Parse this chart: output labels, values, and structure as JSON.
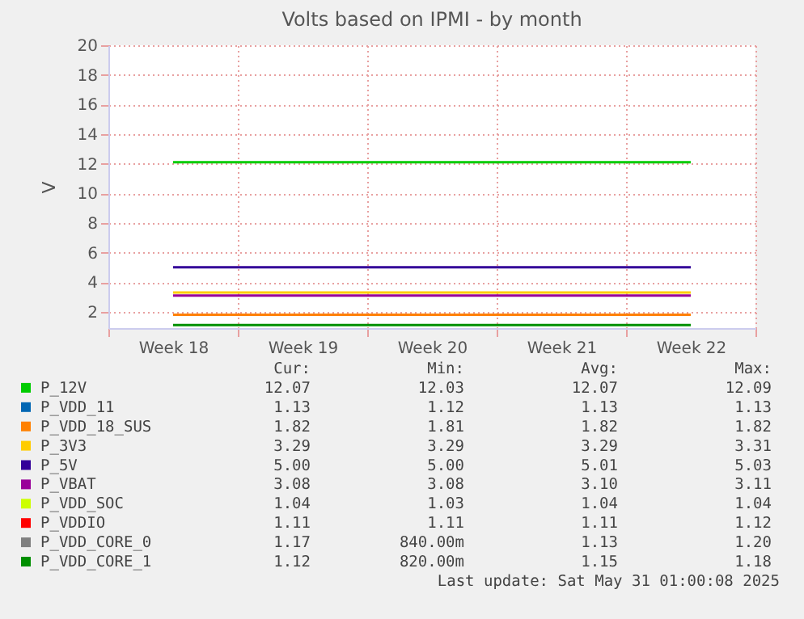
{
  "chart_data": {
    "type": "line",
    "title": "Volts based on IPMI - by month",
    "ylabel": "V",
    "categories": [
      "Week 18",
      "Week 19",
      "Week 20",
      "Week 21",
      "Week 22"
    ],
    "ylim": [
      0.9,
      20
    ],
    "yticks": [
      2,
      4,
      6,
      8,
      10,
      12,
      14,
      16,
      18,
      20
    ],
    "grid": true,
    "legend": "bottom",
    "marker": "none",
    "line_style": "solid",
    "series": [
      {
        "name": "P_12V",
        "color": "#00cc00",
        "values": [
          12.1,
          12.1,
          12.1,
          12.1,
          12.1
        ]
      },
      {
        "name": "P_VDD_11",
        "color": "#0066b3",
        "values": [
          null,
          null,
          null,
          null,
          null
        ]
      },
      {
        "name": "P_VDD_18_SUS",
        "color": "#ff8000",
        "values": [
          1.8,
          1.8,
          1.8,
          1.8,
          1.8
        ]
      },
      {
        "name": "P_3V3",
        "color": "#ffcc00",
        "values": [
          3.3,
          3.3,
          3.3,
          3.3,
          3.3
        ]
      },
      {
        "name": "P_5V",
        "color": "#330099",
        "values": [
          5.0,
          5.0,
          5.0,
          5.0,
          5.0
        ]
      },
      {
        "name": "P_VBAT",
        "color": "#990099",
        "values": [
          3.1,
          3.1,
          3.1,
          3.1,
          3.1
        ]
      },
      {
        "name": "P_VDD_SOC",
        "color": "#ccff00",
        "values": [
          null,
          null,
          null,
          null,
          null
        ]
      },
      {
        "name": "P_VDDIO",
        "color": "#ff0000",
        "values": [
          null,
          null,
          null,
          null,
          null
        ]
      },
      {
        "name": "P_VDD_CORE_0",
        "color": "#808080",
        "values": [
          null,
          null,
          null,
          null,
          null
        ]
      },
      {
        "name": "P_VDD_CORE_1",
        "color": "#008f00",
        "values": [
          1.1,
          1.1,
          1.1,
          1.1,
          1.1
        ]
      }
    ],
    "annotations": [
      "Cur:",
      "Min:",
      "Avg:",
      "Max:",
      "12.07",
      "12.03",
      "12.07",
      "12.09",
      "1.13",
      "1.12",
      "1.13",
      "1.13",
      "1.82",
      "1.81",
      "1.82",
      "1.82",
      "3.29",
      "3.29",
      "3.29",
      "3.31",
      "5.00",
      "5.00",
      "5.01",
      "5.03",
      "3.08",
      "3.08",
      "3.10",
      "3.11",
      "1.04",
      "1.03",
      "1.04",
      "1.04",
      "1.11",
      "1.11",
      "1.11",
      "1.12",
      "1.17",
      "840.00m",
      "1.13",
      "1.20",
      "1.12",
      "820.00m",
      "1.15",
      "1.18",
      "Last update: Sat May 31 01:00:08 2025"
    ]
  }
}
